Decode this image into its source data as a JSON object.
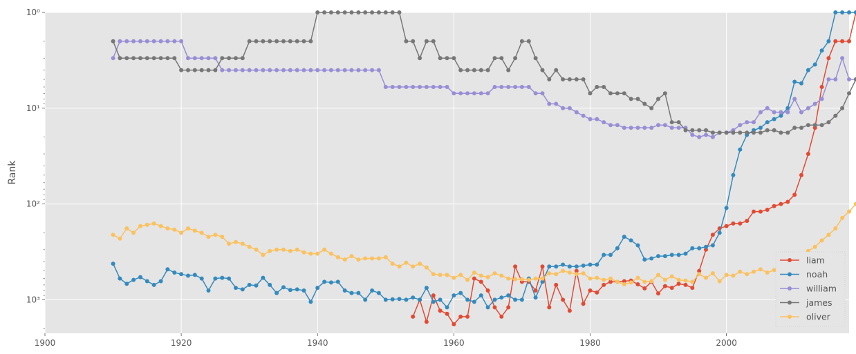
{
  "chart_data": {
    "type": "line",
    "xlabel": "",
    "ylabel": "Rank",
    "xlim": [
      1900,
      2018
    ],
    "ylim_log10": [
      0,
      3.35
    ],
    "y_scale": "log",
    "y_inverted": true,
    "grid": true,
    "legend_position": "bottom-right",
    "x_ticks": [
      1900,
      1920,
      1940,
      1960,
      1980,
      2000
    ],
    "y_ticks": [
      {
        "value": 1,
        "label": "10⁰"
      },
      {
        "value": 10,
        "label": "10¹"
      },
      {
        "value": 100,
        "label": "10²"
      },
      {
        "value": 1000,
        "label": "10³"
      }
    ],
    "series": [
      {
        "name": "liam",
        "color": "#E24A33",
        "start_year": 1954,
        "ranks": [
          1500,
          1000,
          1700,
          900,
          1300,
          1400,
          1800,
          1500,
          1500,
          600,
          650,
          800,
          1200,
          1500,
          1200,
          450,
          650,
          650,
          800,
          450,
          1200,
          700,
          1000,
          1300,
          500,
          1100,
          800,
          840,
          700,
          650,
          650,
          640,
          630,
          690,
          760,
          650,
          860,
          720,
          750,
          680,
          700,
          750,
          500,
          300,
          210,
          180,
          170,
          160,
          160,
          150,
          120,
          120,
          115,
          105,
          100,
          95,
          80,
          50,
          30,
          16,
          6,
          3,
          2,
          2,
          2,
          1
        ]
      },
      {
        "name": "noah",
        "color": "#348ABD",
        "start_year": 1910,
        "ranks": [
          420,
          600,
          680,
          620,
          580,
          640,
          700,
          640,
          480,
          520,
          540,
          560,
          550,
          600,
          800,
          600,
          590,
          600,
          750,
          780,
          700,
          710,
          590,
          700,
          850,
          740,
          790,
          780,
          800,
          1050,
          750,
          650,
          660,
          650,
          800,
          850,
          850,
          1000,
          800,
          850,
          1000,
          990,
          980,
          1000,
          950,
          1000,
          750,
          1050,
          1000,
          1200,
          900,
          850,
          1000,
          1050,
          900,
          1200,
          1000,
          950,
          900,
          1000,
          1000,
          600,
          950,
          650,
          450,
          450,
          430,
          450,
          450,
          440,
          430,
          430,
          340,
          340,
          290,
          220,
          240,
          270,
          380,
          370,
          350,
          350,
          340,
          340,
          330,
          290,
          290,
          280,
          270,
          200,
          110,
          50,
          27,
          19,
          17,
          16,
          14,
          13,
          12,
          10,
          5.3,
          5.5,
          4,
          3.5,
          2.5,
          2,
          1,
          1,
          1,
          1,
          1,
          1
        ]
      },
      {
        "name": "william",
        "color": "#988ED5",
        "start_year": 1910,
        "ranks": [
          3,
          2,
          2,
          2,
          2,
          2,
          2,
          2,
          2,
          2,
          2,
          3,
          3,
          3,
          3,
          3,
          4,
          4,
          4,
          4,
          4,
          4,
          4,
          4,
          4,
          4,
          4,
          4,
          4,
          4,
          4,
          4,
          4,
          4,
          4,
          4,
          4,
          4,
          4,
          4,
          6,
          6,
          6,
          6,
          6,
          6,
          6,
          6,
          6,
          6,
          7,
          7,
          7,
          7,
          7,
          7,
          6,
          6,
          6,
          6,
          6,
          6,
          7,
          7,
          9,
          9,
          10,
          10,
          11,
          12,
          13,
          13,
          14,
          15,
          15,
          16,
          16,
          16,
          16,
          16,
          15,
          15,
          16,
          16,
          16,
          19,
          20,
          19,
          20,
          18,
          18,
          17,
          15,
          14,
          14,
          11,
          10,
          11,
          11,
          11,
          8,
          11,
          10,
          9,
          8,
          5,
          5,
          3,
          5,
          5,
          5,
          3,
          3,
          3
        ]
      },
      {
        "name": "james",
        "color": "#777777",
        "start_year": 1910,
        "ranks": [
          2,
          3,
          3,
          3,
          3,
          3,
          3,
          3,
          3,
          3,
          4,
          4,
          4,
          4,
          4,
          4,
          3,
          3,
          3,
          3,
          2,
          2,
          2,
          2,
          2,
          2,
          2,
          2,
          2,
          2,
          1,
          1,
          1,
          1,
          1,
          1,
          1,
          1,
          1,
          1,
          1,
          1,
          1,
          2,
          2,
          3,
          2,
          2,
          3,
          3,
          3,
          4,
          4,
          4,
          4,
          4,
          3,
          3,
          4,
          3,
          2,
          2,
          3,
          4,
          5,
          4,
          5,
          5,
          5,
          5,
          7,
          6,
          6,
          7,
          7,
          7,
          8,
          8,
          9,
          10,
          8,
          7,
          14,
          14,
          17,
          17,
          17,
          17,
          18,
          18,
          18,
          18,
          18,
          18,
          18,
          18,
          17,
          17,
          18,
          18,
          16,
          16,
          15,
          15,
          15,
          14,
          12,
          10,
          7,
          5,
          4,
          4
        ]
      },
      {
        "name": "oliver",
        "color": "#FBC15E",
        "start_year": 1910,
        "ranks": [
          210,
          230,
          180,
          200,
          170,
          165,
          160,
          170,
          180,
          185,
          200,
          180,
          190,
          200,
          220,
          210,
          220,
          260,
          250,
          260,
          280,
          300,
          340,
          310,
          300,
          300,
          310,
          300,
          320,
          330,
          330,
          300,
          330,
          360,
          380,
          350,
          380,
          370,
          370,
          370,
          360,
          420,
          450,
          410,
          450,
          420,
          460,
          540,
          550,
          550,
          590,
          550,
          620,
          520,
          560,
          580,
          530,
          560,
          600,
          610,
          610,
          620,
          600,
          600,
          530,
          540,
          500,
          520,
          540,
          530,
          600,
          590,
          620,
          600,
          650,
          690,
          660,
          590,
          650,
          640,
          550,
          620,
          570,
          620,
          630,
          650,
          540,
          590,
          530,
          640,
          550,
          560,
          510,
          540,
          510,
          480,
          520,
          490,
          450,
          390,
          370,
          350,
          310,
          280,
          240,
          210,
          180,
          140,
          120,
          100,
          90,
          70,
          50,
          25,
          17,
          8,
          4,
          3,
          2,
          1.5,
          1.2,
          1.1,
          1,
          1
        ]
      }
    ]
  }
}
